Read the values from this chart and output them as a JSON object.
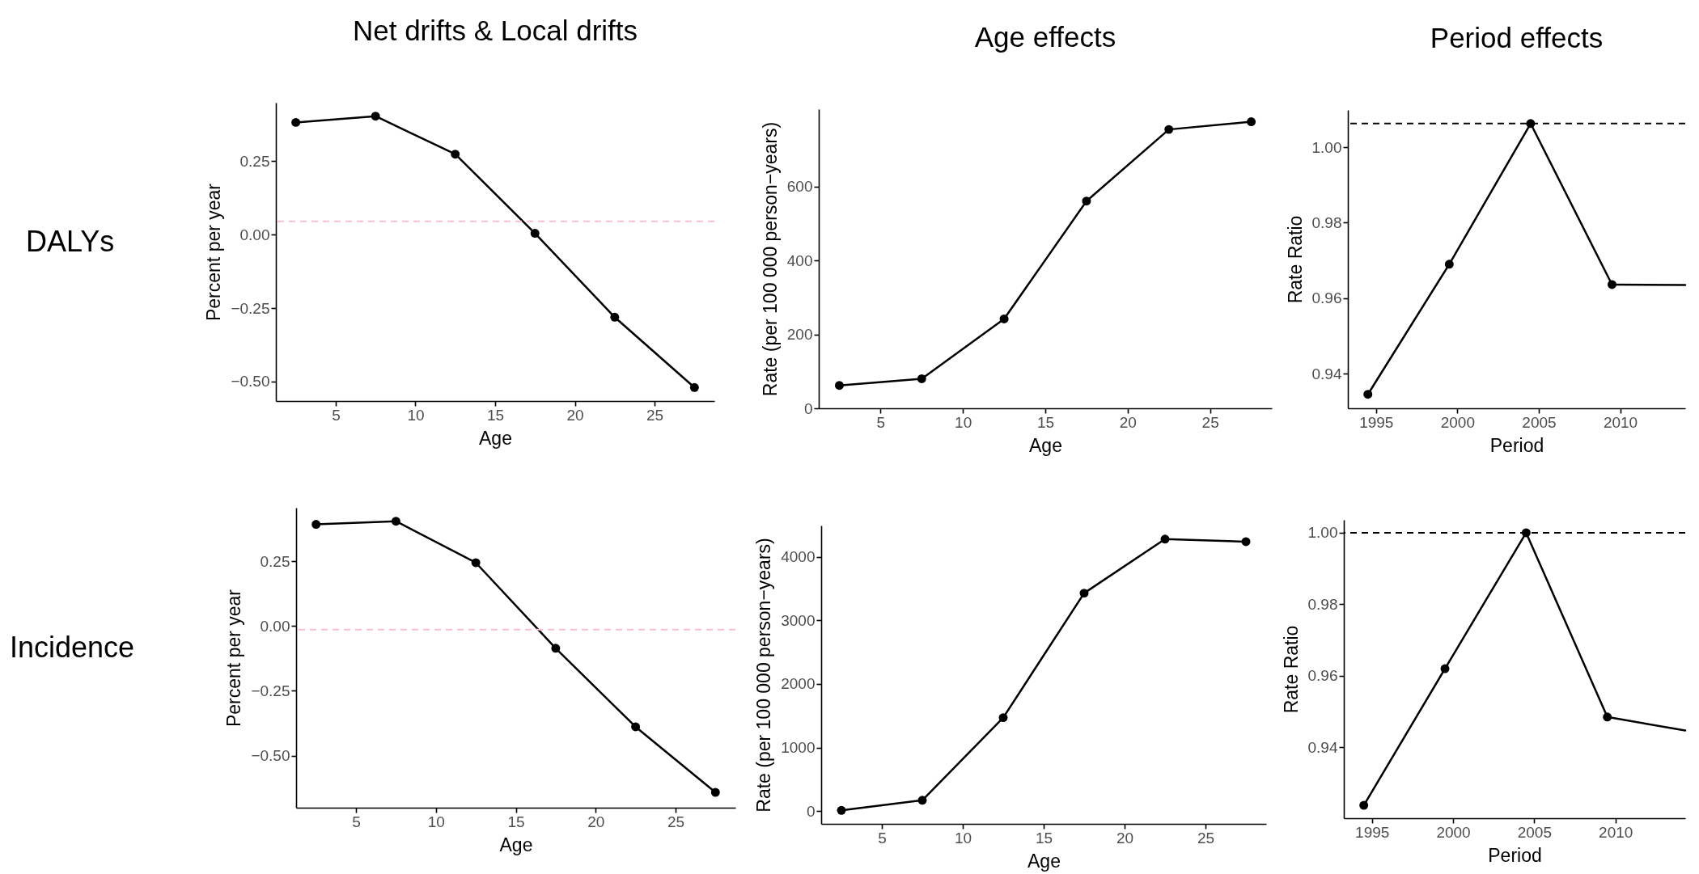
{
  "chart_data": [
    {
      "type": "line",
      "title": "Net drifts & Local drifts",
      "xlabel": "Age",
      "ylabel": "Percent per year",
      "annotations": [
        "DALYs"
      ],
      "x": [
        2.5,
        7.5,
        12.5,
        17.5,
        22.5,
        27.5
      ],
      "series": [
        {
          "color": "#000000",
          "values": [
            0.381,
            0.402,
            0.273,
            0.004,
            -0.281,
            -0.52
          ]
        }
      ],
      "xlim": [
        1.25,
        28.75
      ],
      "xticks": [
        5,
        10,
        15,
        20,
        25
      ],
      "ylim": [
        -0.566,
        0.448
      ],
      "yticks": [
        {
          "value": -0.5,
          "label": "−0.50"
        },
        {
          "value": -0.25,
          "label": "−0.25"
        },
        {
          "value": 0,
          "label": "0.00"
        },
        {
          "value": 0.25,
          "label": "0.25"
        }
      ],
      "ref_lines": [
        {
          "axis": "y",
          "value": 0.045,
          "color": "#ffc0cb",
          "line_style": "dashed"
        }
      ],
      "marker": "circle",
      "grid": false
    },
    {
      "type": "line",
      "title": "Age effects",
      "xlabel": "Age",
      "ylabel": "Rate (per 100 000 person−years)",
      "x": [
        2.5,
        7.5,
        12.5,
        17.5,
        22.5,
        27.5
      ],
      "series": [
        {
          "color": "#000000",
          "values": [
            62,
            80,
            242,
            561,
            755,
            776
          ]
        }
      ],
      "xlim": [
        1.25,
        28.75
      ],
      "xticks": [
        5,
        10,
        15,
        20,
        25
      ],
      "ylim": [
        0,
        810
      ],
      "yticks": [
        0,
        200,
        400,
        600
      ],
      "marker": "circle",
      "grid": false
    },
    {
      "type": "line",
      "title": "Period effects",
      "xlabel": "Period",
      "ylabel": "Rate Ratio",
      "x": [
        1994.5,
        1999.5,
        2004.5,
        2009.5
      ],
      "series": [
        {
          "color": "#000000",
          "values": [
            0.9345,
            0.969,
            1.0063,
            0.9636
          ]
        },
        {
          "color": "#000000",
          "x": [
            2009.5,
            2014
          ],
          "values": [
            0.9636,
            0.9635
          ],
          "marker": "none"
        }
      ],
      "xlim": [
        1993.27,
        2014
      ],
      "xticks": [
        1995,
        2000,
        2005,
        2010
      ],
      "ylim": [
        0.9308,
        1.0099
      ],
      "yticks": [
        {
          "value": 0.94,
          "label": "0.94"
        },
        {
          "value": 0.96,
          "label": "0.96"
        },
        {
          "value": 0.98,
          "label": "0.98"
        },
        {
          "value": 1,
          "label": "1.00"
        }
      ],
      "ref_lines": [
        {
          "axis": "y",
          "value": 1.0063,
          "color": "#000000",
          "line_style": "dashed"
        }
      ],
      "marker": "circle",
      "grid": false
    },
    {
      "type": "line",
      "xlabel": "Age",
      "ylabel": "Percent per year",
      "annotations": [
        "Incidence"
      ],
      "x": [
        2.5,
        7.5,
        12.5,
        17.5,
        22.5,
        27.5
      ],
      "series": [
        {
          "color": "#000000",
          "values": [
            0.392,
            0.404,
            0.244,
            -0.086,
            -0.389,
            -0.642
          ]
        }
      ],
      "xlim": [
        1.25,
        28.75
      ],
      "xticks": [
        5,
        10,
        15,
        20,
        25
      ],
      "ylim": [
        -0.701,
        0.456
      ],
      "yticks": [
        {
          "value": -0.5,
          "label": "−0.50"
        },
        {
          "value": -0.25,
          "label": "−0.25"
        },
        {
          "value": 0,
          "label": "0.00"
        },
        {
          "value": 0.25,
          "label": "0.25"
        }
      ],
      "ref_lines": [
        {
          "axis": "y",
          "value": -0.014,
          "color": "#ffc0cb",
          "line_style": "dashed"
        }
      ],
      "marker": "circle",
      "grid": false
    },
    {
      "type": "line",
      "xlabel": "Age",
      "ylabel": "Rate (per 100 000 person−years)",
      "x": [
        2.5,
        7.5,
        12.5,
        17.5,
        22.5,
        27.5
      ],
      "series": [
        {
          "color": "#000000",
          "values": [
            10,
            170,
            1470,
            3430,
            4280,
            4240
          ]
        }
      ],
      "xlim": [
        1.25,
        28.75
      ],
      "xticks": [
        5,
        10,
        15,
        20,
        25
      ],
      "ylim": [
        -202,
        4494
      ],
      "yticks": [
        0,
        1000,
        2000,
        3000,
        4000
      ],
      "marker": "circle",
      "grid": false
    },
    {
      "type": "line",
      "xlabel": "Period",
      "ylabel": "Rate Ratio",
      "x": [
        1994.5,
        1999.5,
        2004.5,
        2009.5
      ],
      "series": [
        {
          "color": "#000000",
          "values": [
            0.9238,
            0.962,
            1.0,
            0.9485
          ]
        },
        {
          "color": "#000000",
          "x": [
            2009.5,
            2014.3
          ],
          "values": [
            0.9485,
            0.9447
          ],
          "marker": "none"
        }
      ],
      "xlim": [
        1993.27,
        2014.3
      ],
      "xticks": [
        1995,
        2000,
        2005,
        2010
      ],
      "ylim": [
        0.9202,
        1.0036
      ],
      "yticks": [
        {
          "value": 0.94,
          "label": "0.94"
        },
        {
          "value": 0.96,
          "label": "0.96"
        },
        {
          "value": 0.98,
          "label": "0.98"
        },
        {
          "value": 1,
          "label": "1.00"
        }
      ],
      "ref_lines": [
        {
          "axis": "y",
          "value": 1.0,
          "color": "#000000",
          "line_style": "dashed"
        }
      ],
      "marker": "circle",
      "grid": false
    }
  ]
}
